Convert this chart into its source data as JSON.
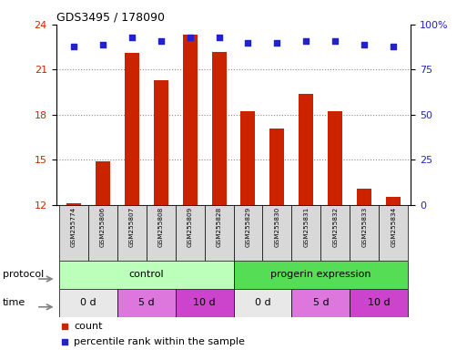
{
  "title": "GDS3495 / 178090",
  "samples": [
    "GSM255774",
    "GSM255806",
    "GSM255807",
    "GSM255808",
    "GSM255809",
    "GSM255828",
    "GSM255829",
    "GSM255830",
    "GSM255831",
    "GSM255832",
    "GSM255833",
    "GSM255834"
  ],
  "bar_values": [
    12.1,
    14.9,
    22.1,
    20.3,
    23.3,
    22.2,
    18.2,
    17.1,
    19.4,
    18.2,
    13.1,
    12.5
  ],
  "dot_values": [
    88,
    89,
    93,
    91,
    93,
    93,
    90,
    90,
    91,
    91,
    89,
    88
  ],
  "ylim_left": [
    12,
    24
  ],
  "ylim_right": [
    0,
    100
  ],
  "yticks_left": [
    12,
    15,
    18,
    21,
    24
  ],
  "yticks_right": [
    0,
    25,
    50,
    75,
    100
  ],
  "ytick_right_labels": [
    "0",
    "25",
    "50",
    "75",
    "100%"
  ],
  "bar_color": "#cc2200",
  "dot_color": "#2222cc",
  "grid_color": "#888888",
  "protocol_color_control": "#bbffbb",
  "protocol_color_progerin": "#55dd55",
  "time_colors": [
    "#e8e8e8",
    "#dd77dd",
    "#cc44cc",
    "#e8e8e8",
    "#dd77dd",
    "#cc44cc"
  ],
  "time_labels": [
    "0 d",
    "5 d",
    "10 d",
    "0 d",
    "5 d",
    "10 d"
  ],
  "legend_count_label": "count",
  "legend_pct_label": "percentile rank within the sample",
  "bg_color": "#ffffff",
  "tick_label_color_left": "#cc2200",
  "tick_label_color_right": "#2222cc"
}
